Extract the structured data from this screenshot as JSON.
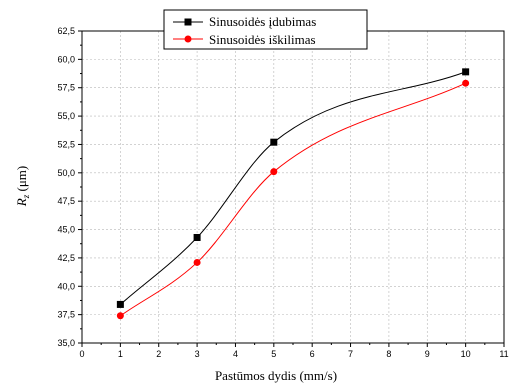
{
  "chart_data": {
    "type": "line",
    "title": "",
    "xlabel": "Pastūmos dydis (mm/s)",
    "ylabel_main": "R",
    "ylabel_sub": "z",
    "ylabel_unit": " (μm)",
    "xlim": [
      0,
      11
    ],
    "ylim": [
      35,
      62.5
    ],
    "x_ticks": [
      0,
      1,
      2,
      3,
      4,
      5,
      6,
      7,
      8,
      9,
      10,
      11
    ],
    "y_ticks": [
      35.0,
      37.5,
      40.0,
      42.5,
      45.0,
      47.5,
      50.0,
      52.5,
      55.0,
      57.5,
      60.0,
      62.5
    ],
    "y_tick_labels": [
      "35,0",
      "37,5",
      "40,0",
      "42,5",
      "45,0",
      "47,5",
      "50,0",
      "52,5",
      "55,0",
      "57,5",
      "60,0",
      "62,5"
    ],
    "grid": "dashed",
    "legend_position": "top-center",
    "series": [
      {
        "name": "Sinusoidės įdubimas",
        "x": [
          1,
          3,
          5,
          10
        ],
        "values": [
          38.4,
          44.3,
          52.7,
          58.9
        ],
        "color": "#000000",
        "marker": "square"
      },
      {
        "name": "Sinusoidės iškilimas",
        "x": [
          1,
          3,
          5,
          10
        ],
        "values": [
          37.4,
          42.1,
          50.1,
          57.9
        ],
        "color": "#ff0000",
        "marker": "circle"
      }
    ]
  }
}
